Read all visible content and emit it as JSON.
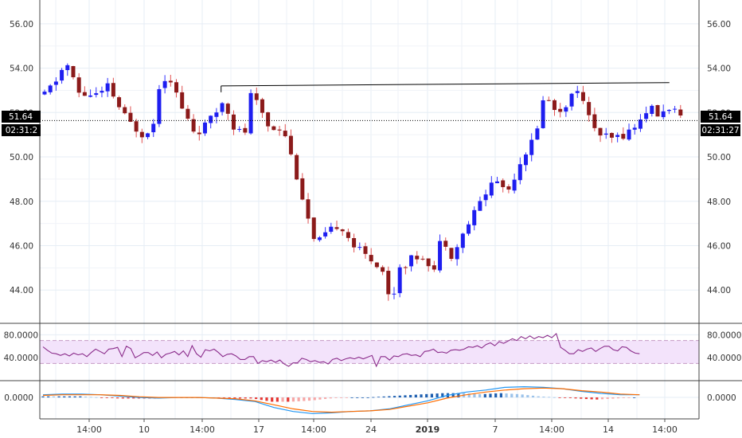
{
  "chart_data": [
    {
      "type": "candlestick",
      "panel": "price",
      "ylim": [
        42.5,
        57.0
      ],
      "y_ticks": [
        44,
        46,
        48,
        50,
        52,
        54,
        56
      ],
      "y_tick_labels": [
        "44.00",
        "46.00",
        "48.00",
        "50.00",
        "52.00",
        "54.00",
        "56.00"
      ],
      "x_tick_labels": [
        "14:00",
        "10",
        "14:00",
        "17",
        "14:00",
        "24",
        "2019",
        "7",
        "14:00",
        "14",
        "14:00"
      ],
      "last_price": "51.64",
      "countdown": "02:31:27",
      "countdown_left": "02:31:2",
      "trendline": {
        "from": [
          0.275,
          53.2
        ],
        "to": [
          0.955,
          53.35
        ]
      },
      "colors": {
        "up": "#1e1ef0",
        "down": "#8b1a1a",
        "wick_down": "#e05050",
        "wick_up": "#3030ff"
      },
      "anchors": [
        [
          0.0,
          52.8
        ],
        [
          0.02,
          53.6
        ],
        [
          0.03,
          54.3
        ],
        [
          0.05,
          52.8
        ],
        [
          0.07,
          52.8
        ],
        [
          0.085,
          52.9
        ],
        [
          0.09,
          53.2
        ],
        [
          0.11,
          52.0
        ],
        [
          0.125,
          51.4
        ],
        [
          0.14,
          51.0
        ],
        [
          0.155,
          51.5
        ],
        [
          0.165,
          53.6
        ],
        [
          0.18,
          53.5
        ],
        [
          0.195,
          52.2
        ],
        [
          0.215,
          51.0
        ],
        [
          0.24,
          51.8
        ],
        [
          0.255,
          52.6
        ],
        [
          0.27,
          51.3
        ],
        [
          0.285,
          51.0
        ],
        [
          0.29,
          52.9
        ],
        [
          0.305,
          52.3
        ],
        [
          0.32,
          51.3
        ],
        [
          0.34,
          51.3
        ],
        [
          0.36,
          49.0
        ],
        [
          0.385,
          46.0
        ],
        [
          0.4,
          46.5
        ],
        [
          0.42,
          47.0
        ],
        [
          0.44,
          46.0
        ],
        [
          0.46,
          45.5
        ],
        [
          0.48,
          45.0
        ],
        [
          0.495,
          43.0
        ],
        [
          0.5,
          45.0
        ],
        [
          0.515,
          45.2
        ],
        [
          0.525,
          45.5
        ],
        [
          0.54,
          45.5
        ],
        [
          0.555,
          44.9
        ],
        [
          0.565,
          46.5
        ],
        [
          0.58,
          45.5
        ],
        [
          0.6,
          46.8
        ],
        [
          0.62,
          48.0
        ],
        [
          0.64,
          49.0
        ],
        [
          0.66,
          48.5
        ],
        [
          0.68,
          50.0
        ],
        [
          0.7,
          51.0
        ],
        [
          0.71,
          52.8
        ],
        [
          0.73,
          52.0
        ],
        [
          0.745,
          52.5
        ],
        [
          0.76,
          53.2
        ],
        [
          0.77,
          52.0
        ],
        [
          0.79,
          51.0
        ],
        [
          0.805,
          50.8
        ],
        [
          0.825,
          51.0
        ],
        [
          0.845,
          51.5
        ],
        [
          0.86,
          52.3
        ],
        [
          0.875,
          51.8
        ],
        [
          0.89,
          52.3
        ],
        [
          0.905,
          51.7
        ]
      ],
      "noise_seed": 11,
      "noise_amp": 0.35
    },
    {
      "type": "line",
      "panel": "oscillator",
      "ylim": [
        0,
        100
      ],
      "band": [
        30,
        70
      ],
      "y_ticks": [
        40,
        80
      ],
      "y_tick_labels": [
        "40.0000",
        "80.0000"
      ],
      "series": [
        {
          "values": [
            59,
            53,
            48,
            47,
            44,
            47,
            43,
            48,
            45,
            47,
            42,
            49,
            55,
            51,
            47,
            55,
            56,
            58,
            42,
            60,
            56,
            40,
            44,
            49,
            49,
            44,
            50,
            40,
            46,
            48,
            51,
            45,
            52,
            42,
            61,
            47,
            41,
            54,
            52,
            55,
            49,
            42,
            46,
            47,
            43,
            37,
            37,
            42,
            42,
            30,
            35,
            33,
            36,
            32,
            36,
            29,
            25,
            31,
            31,
            39,
            37,
            33,
            35,
            32,
            33,
            29,
            37,
            39,
            35,
            38,
            40,
            38,
            41,
            38,
            41,
            44,
            25,
            42,
            42,
            36,
            43,
            42,
            46,
            47,
            44,
            45,
            42,
            51,
            52,
            55,
            49,
            50,
            48,
            53,
            54,
            53,
            55,
            59,
            58,
            61,
            57,
            63,
            66,
            61,
            68,
            65,
            69,
            73,
            70,
            77,
            73,
            78,
            73,
            77,
            75,
            79,
            75,
            82,
            58,
            53,
            47,
            47,
            54,
            51,
            55,
            57,
            51,
            56,
            60,
            60,
            54,
            52,
            59,
            58,
            52,
            48,
            47
          ],
          "color": "#8a2b8a"
        }
      ]
    },
    {
      "type": "line",
      "panel": "macd",
      "ylim": [
        -3.2,
        2.5
      ],
      "y_ticks": [
        0
      ],
      "y_tick_labels": [
        "0.0000"
      ],
      "series": [
        {
          "values": [
            0.4,
            0.5,
            0.5,
            0.4,
            0.2,
            0.0,
            -0.1,
            0.0,
            0.0,
            -0.1,
            -0.3,
            -0.6,
            -1.5,
            -2.1,
            -2.4,
            -2.3,
            -2.1,
            -2.0,
            -1.7,
            -1.1,
            -0.5,
            0.3,
            0.8,
            1.1,
            1.5,
            1.6,
            1.5,
            1.3,
            0.9,
            0.6,
            0.4,
            0.4
          ],
          "color": "#2196f3"
        },
        {
          "values": [
            0.3,
            0.4,
            0.4,
            0.4,
            0.3,
            0.1,
            0.0,
            0.0,
            0.0,
            -0.1,
            -0.2,
            -0.5,
            -1.1,
            -1.7,
            -2.1,
            -2.2,
            -2.1,
            -2.0,
            -1.8,
            -1.3,
            -0.8,
            -0.1,
            0.4,
            0.8,
            1.1,
            1.3,
            1.4,
            1.3,
            1.0,
            0.8,
            0.5,
            0.4
          ],
          "color": "#ff6d00"
        }
      ],
      "histogram_colors": {
        "pos_strong": "#1e5fb0",
        "pos_weak": "#9cc3ea",
        "neg_strong": "#e53935",
        "neg_weak": "#f6a7a6"
      }
    }
  ]
}
